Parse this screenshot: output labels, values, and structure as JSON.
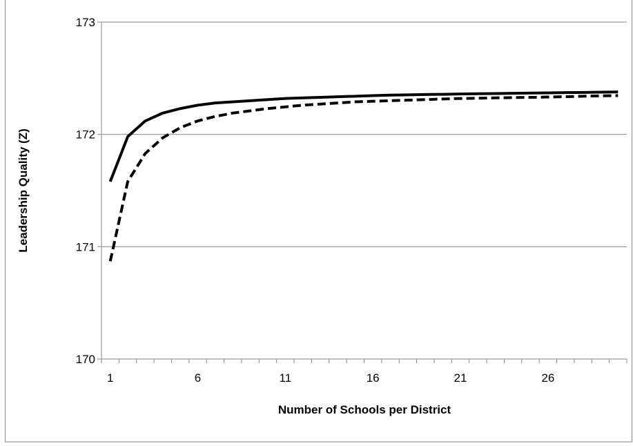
{
  "chart_data": {
    "type": "line",
    "title": "",
    "xlabel": "Number of Schools per District",
    "ylabel": "Leadership Quality (Z)",
    "xlim": [
      0.5,
      30.5
    ],
    "ylim": [
      170,
      173
    ],
    "xticks": [
      1,
      6,
      11,
      16,
      21,
      26
    ],
    "yticks": [
      170,
      171,
      172,
      173
    ],
    "grid": "horizontal",
    "legend": "none",
    "series": [
      {
        "style": "solid",
        "color": "#000000",
        "x": [
          1,
          2,
          3,
          4,
          5,
          6,
          7,
          8,
          9,
          10,
          11,
          12,
          13,
          14,
          15,
          16,
          17,
          18,
          19,
          20,
          21,
          22,
          23,
          24,
          25,
          26,
          27,
          28,
          29,
          30
        ],
        "values": [
          171.58,
          171.98,
          172.12,
          172.19,
          172.23,
          172.26,
          172.28,
          172.29,
          172.3,
          172.31,
          172.32,
          172.325,
          172.33,
          172.335,
          172.34,
          172.345,
          172.35,
          172.352,
          172.355,
          172.357,
          172.36,
          172.362,
          172.364,
          172.366,
          172.368,
          172.37,
          172.372,
          172.374,
          172.376,
          172.378
        ]
      },
      {
        "style": "dashed",
        "color": "#000000",
        "x": [
          1,
          2,
          3,
          4,
          5,
          6,
          7,
          8,
          9,
          10,
          11,
          12,
          13,
          14,
          15,
          16,
          17,
          18,
          19,
          20,
          21,
          22,
          23,
          24,
          25,
          26,
          27,
          28,
          29,
          30
        ],
        "values": [
          170.87,
          171.58,
          171.83,
          171.97,
          172.06,
          172.12,
          172.16,
          172.19,
          172.21,
          172.23,
          172.245,
          172.26,
          172.27,
          172.28,
          172.29,
          172.295,
          172.3,
          172.305,
          172.31,
          172.315,
          172.32,
          172.322,
          172.325,
          172.328,
          172.33,
          172.333,
          172.336,
          172.34,
          172.343,
          172.346
        ]
      }
    ]
  },
  "colors": {
    "axis": "#868686",
    "grid": "#868686",
    "frame": "#868686",
    "text": "#000000"
  }
}
